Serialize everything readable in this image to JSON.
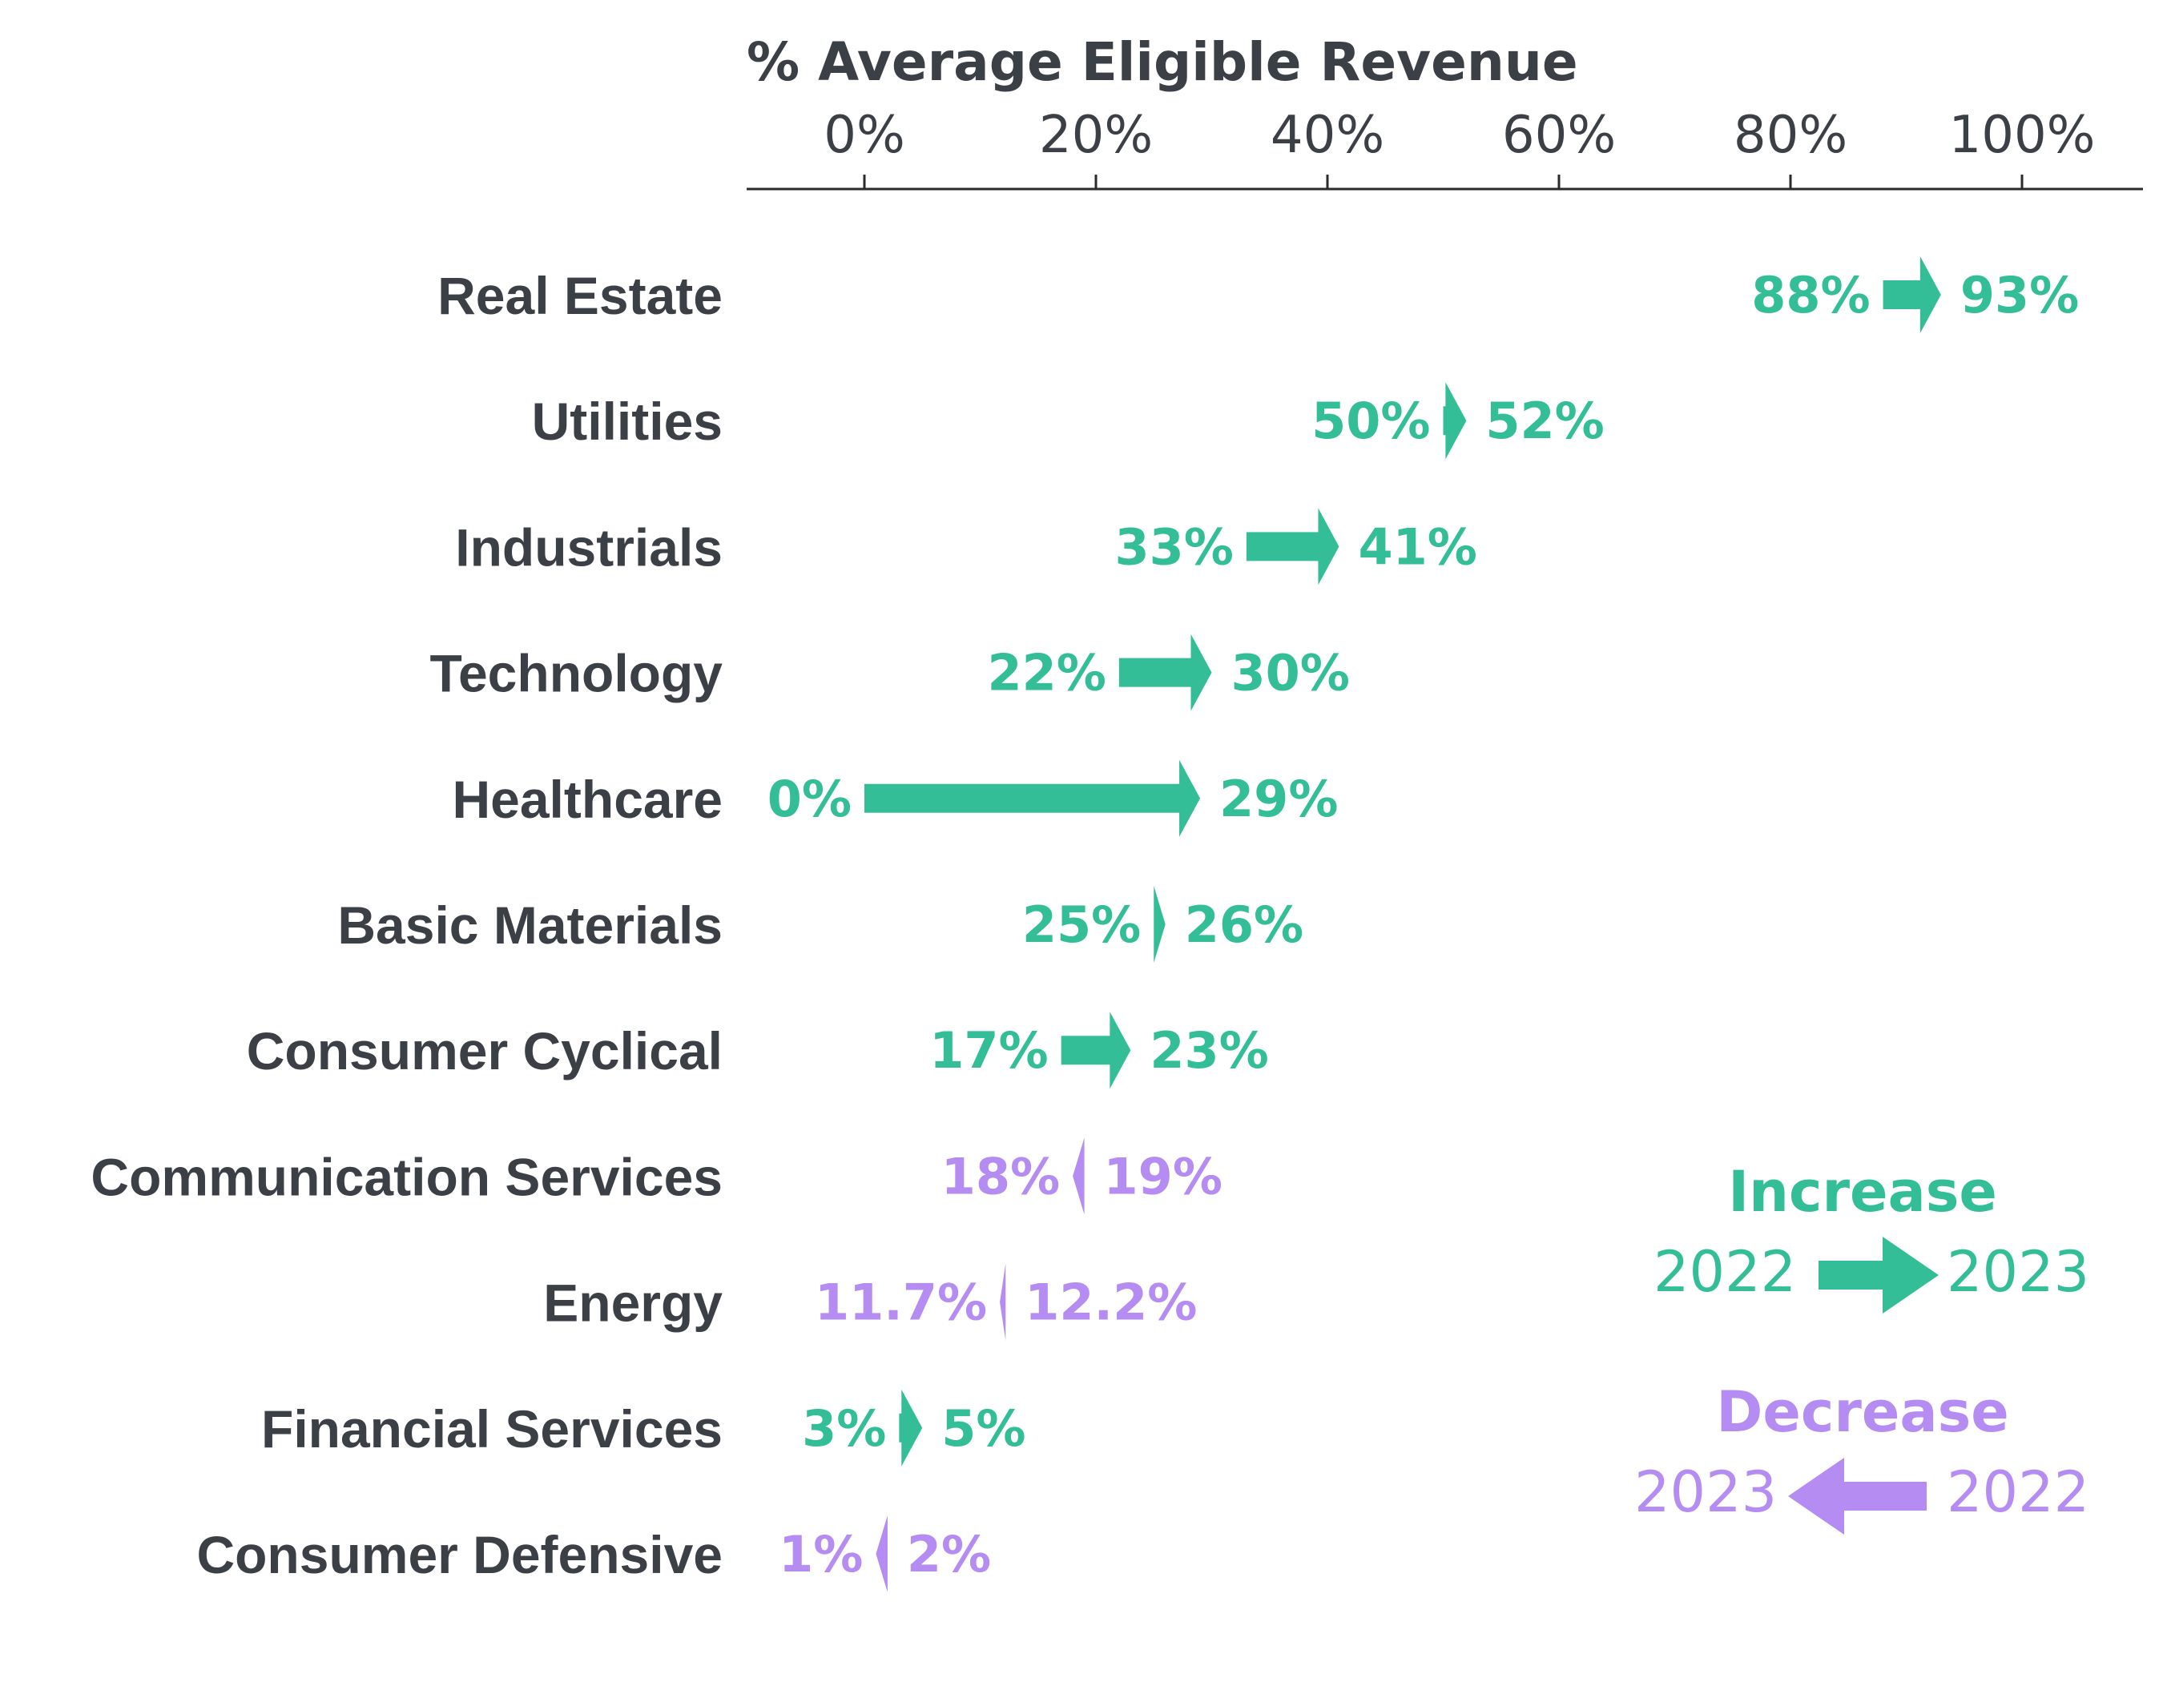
{
  "chart_data": {
    "type": "arrow",
    "axis_title": "% Average Eligible Revenue",
    "xlim": [
      -10,
      110
    ],
    "ticks": [
      0,
      20,
      40,
      60,
      80,
      100
    ],
    "tick_labels": [
      "0%",
      "20%",
      "40%",
      "60%",
      "80%",
      "100%"
    ],
    "categories": [
      {
        "name": "Real Estate",
        "y2022": 88,
        "y2023": 93,
        "label2022": "88%",
        "label2023": "93%"
      },
      {
        "name": "Utilities",
        "y2022": 50,
        "y2023": 52,
        "label2022": "50%",
        "label2023": "52%"
      },
      {
        "name": "Industrials",
        "y2022": 33,
        "y2023": 41,
        "label2022": "33%",
        "label2023": "41%"
      },
      {
        "name": "Technology",
        "y2022": 22,
        "y2023": 30,
        "label2022": "22%",
        "label2023": "30%"
      },
      {
        "name": "Healthcare",
        "y2022": 0,
        "y2023": 29,
        "label2022": "0%",
        "label2023": "29%"
      },
      {
        "name": "Basic Materials",
        "y2022": 25,
        "y2023": 26,
        "label2022": "25%",
        "label2023": "26%"
      },
      {
        "name": "Consumer Cyclical",
        "y2022": 17,
        "y2023": 23,
        "label2022": "17%",
        "label2023": "23%"
      },
      {
        "name": "Communication Services",
        "y2022": 19,
        "y2023": 18,
        "label2022": "19%",
        "label2023": "18%"
      },
      {
        "name": "Energy",
        "y2022": 12.2,
        "y2023": 11.7,
        "label2022": "12.2%",
        "label2023": "11.7%"
      },
      {
        "name": "Financial Services",
        "y2022": 3,
        "y2023": 5,
        "label2022": "3%",
        "label2023": "5%"
      },
      {
        "name": "Consumer Defensive",
        "y2022": 2,
        "y2023": 1,
        "label2022": "2%",
        "label2023": "1%"
      }
    ],
    "colors": {
      "increase": "#33be97",
      "decrease": "#b48cf2",
      "text": "#3b3f46",
      "axis": "#2b2b2b"
    },
    "legend": {
      "increase": {
        "title": "Increase",
        "from": "2022",
        "to": "2023"
      },
      "decrease": {
        "title": "Decrease",
        "from": "2022",
        "to": "2023"
      }
    }
  }
}
